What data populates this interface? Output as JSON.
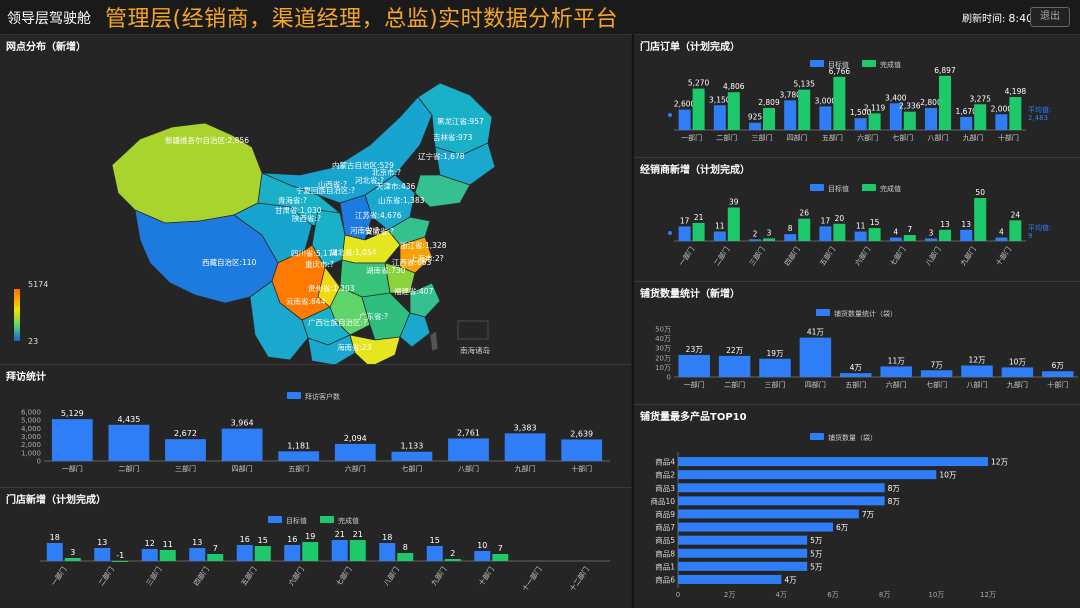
{
  "header": {
    "brand": "领导层驾驶舱",
    "title": "管理层(经销商，渠道经理，总监)实时数据分析平台",
    "refresh_label": "刷新时间:",
    "refresh_time": "8:40",
    "logout_label": "退出"
  },
  "colors": {
    "blue": "#2f7ef7",
    "green": "#1ec96b",
    "background": "#202020",
    "panel": "#252525",
    "map_high": "#ff6d00",
    "map_low": "#1a5fd8"
  },
  "map_panel": {
    "title": "网点分布（新增）",
    "legend_max": "5174",
    "legend_min": "23",
    "labels": [
      "黑龙江省:957",
      "吉林省:973",
      "辽宁省:1,678",
      "内蒙古自治区:529",
      "新疆维吾尔自治区:2,856",
      "西藏自治区:110",
      "青海省:?",
      "四川省:5,174",
      "重庆市:?",
      "云南省:844",
      "贵州省:1,303",
      "广西壮族自治区:?",
      "海南省:23",
      "广东省:?",
      "福建省:407",
      "湖北省:1,054",
      "湖南省:730",
      "江苏省:4,676",
      "浙江省:1,328",
      "安徽省:?",
      "江西省:663",
      "河南省:?",
      "山东省:1,383",
      "河北省:?",
      "北京市:?",
      "天津市:436",
      "山西省:?",
      "陕西省:?",
      "甘肃省:1,030",
      "宁夏回族自治区:?",
      "上海市:2?",
      "南海诸岛"
    ]
  },
  "charts": {
    "store_orders": {
      "title": "门店订单（计划完成）",
      "type": "bar",
      "categories": [
        "一部门",
        "二部门",
        "三部门",
        "四部门",
        "五部门",
        "六部门",
        "七部门",
        "八部门",
        "九部门",
        "十部门"
      ],
      "series": [
        {
          "name": "目标值",
          "values": [
            2600,
            3150,
            925,
            3780,
            3000,
            1500,
            3400,
            2800,
            1670,
            2000
          ]
        },
        {
          "name": "完成值",
          "values": [
            5270,
            4806,
            2809,
            5135,
            6766,
            2119,
            2336,
            6897,
            3275,
            4198
          ]
        }
      ],
      "data_labels": {
        "目标值": [
          "2,600",
          "3,150",
          "925",
          "3,780",
          "3,000",
          "1,500",
          "3,400",
          "2,800",
          "1,670",
          "2,000"
        ],
        "完成值": [
          "5,270",
          "4,806",
          "2,809",
          "5,135",
          "6,766",
          "2,119",
          "2,336",
          "6,897",
          "3,275",
          "4,198"
        ]
      },
      "avg_label": "平均值:",
      "avg_value": "2,483",
      "ylim": [
        0,
        7000
      ]
    },
    "dealer_new": {
      "title": "经销商新增（计划完成）",
      "type": "bar",
      "categories": [
        "一部门",
        "二部门",
        "三部门",
        "四部门",
        "五部门",
        "六部门",
        "七部门",
        "八部门",
        "九部门",
        "十部门"
      ],
      "series": [
        {
          "name": "目标值",
          "values": [
            17,
            11,
            2,
            8,
            17,
            11,
            4,
            3,
            13,
            4
          ]
        },
        {
          "name": "完成值",
          "values": [
            21,
            39,
            3,
            26,
            20,
            15,
            7,
            13,
            50,
            24
          ]
        }
      ],
      "avg_label": "平均值:",
      "avg_value": "9",
      "ylim": [
        0,
        50
      ]
    },
    "stocking": {
      "title": "铺货数量统计（新增）",
      "type": "bar",
      "legend": "铺货数量统计（袋）",
      "categories": [
        "一部门",
        "二部门",
        "三部门",
        "四部门",
        "五部门",
        "六部门",
        "七部门",
        "八部门",
        "九部门",
        "十部门"
      ],
      "values": [
        230000,
        220000,
        190000,
        410000,
        40000,
        110000,
        70000,
        120000,
        100000,
        60000
      ],
      "data_labels": [
        "23万",
        "22万",
        "19万",
        "41万",
        "4万",
        "11万",
        "7万",
        "12万",
        "10万",
        "6万"
      ],
      "y_ticks": [
        "0",
        "10万",
        "20万",
        "30万",
        "40万",
        "50万"
      ],
      "ylim": [
        0,
        500000
      ]
    },
    "visits": {
      "title": "拜访统计",
      "type": "bar",
      "legend": "拜访客户数",
      "categories": [
        "一部门",
        "二部门",
        "三部门",
        "四部门",
        "五部门",
        "六部门",
        "七部门",
        "八部门",
        "九部门",
        "十部门"
      ],
      "values": [
        5129,
        4435,
        2672,
        3964,
        1181,
        2094,
        1133,
        2761,
        3383,
        2639
      ],
      "data_labels": [
        "5,129",
        "4,435",
        "2,672",
        "3,964",
        "1,181",
        "2,094",
        "1,133",
        "2,761",
        "3,383",
        "2,639"
      ],
      "y_ticks": [
        "0",
        "1,000",
        "2,000",
        "3,000",
        "4,000",
        "5,000",
        "6,000"
      ],
      "ylim": [
        0,
        6000
      ]
    },
    "store_new": {
      "title": "门店新增（计划完成）",
      "type": "bar",
      "categories": [
        "一部门",
        "二部门",
        "三部门",
        "四部门",
        "五部门",
        "六部门",
        "七部门",
        "八部门",
        "九部门",
        "十部门",
        "十一部门",
        "十二部门"
      ],
      "series": [
        {
          "name": "目标值",
          "values": [
            18,
            13,
            12,
            13,
            16,
            16,
            21,
            18,
            15,
            10,
            null,
            null
          ]
        },
        {
          "name": "完成值",
          "values": [
            3,
            -1,
            11,
            7,
            15,
            19,
            21,
            8,
            2,
            7,
            null,
            null
          ]
        }
      ],
      "ylim": [
        -2,
        22
      ]
    },
    "top10": {
      "title": "铺货量最多产品TOP10",
      "type": "bar",
      "orientation": "horizontal",
      "legend": "铺货数量（袋）",
      "categories": [
        "商品4",
        "商品2",
        "商品3",
        "商品10",
        "商品9",
        "商品7",
        "商品5",
        "商品8",
        "商品1",
        "商品6"
      ],
      "values": [
        120000,
        100000,
        80000,
        80000,
        70000,
        60000,
        50000,
        50000,
        50000,
        40000
      ],
      "data_labels": [
        "12万",
        "10万",
        "8万",
        "8万",
        "7万",
        "6万",
        "5万",
        "5万",
        "5万",
        "4万"
      ],
      "x_ticks": [
        "0",
        "2万",
        "4万",
        "6万",
        "8万",
        "10万",
        "12万"
      ],
      "xlim": [
        0,
        120000
      ]
    }
  }
}
